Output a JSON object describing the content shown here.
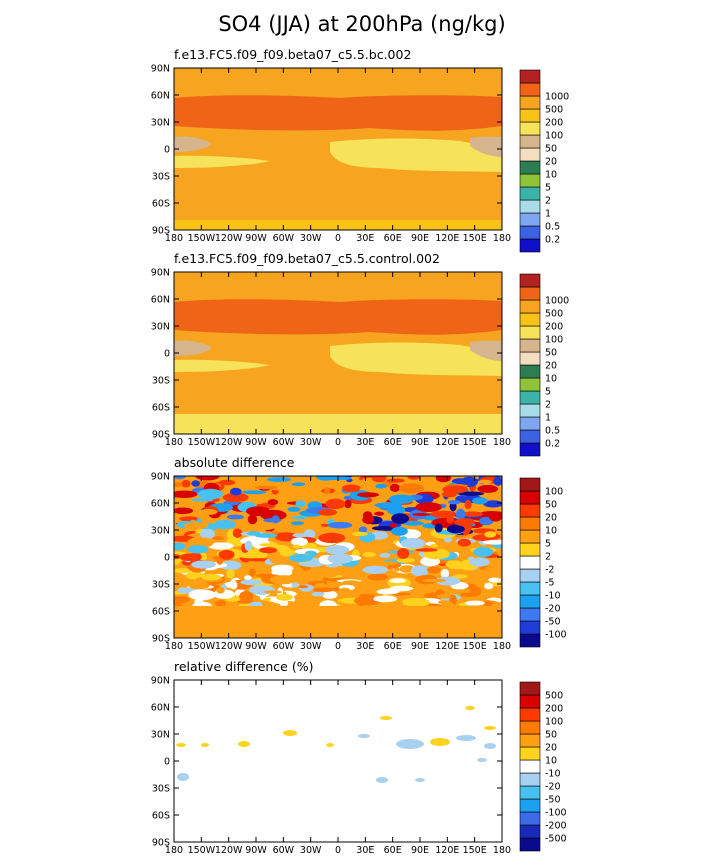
{
  "figure": {
    "title": "SO4 (JJA) at 200hPa (ng/kg)"
  },
  "axes": {
    "lat_ticks": [
      "90N",
      "60N",
      "30N",
      "0",
      "30S",
      "60S",
      "90S"
    ],
    "lon_ticks": [
      "180",
      "150W",
      "120W",
      "90W",
      "60W",
      "30W",
      "0",
      "30E",
      "60E",
      "90E",
      "120E",
      "150E",
      "180"
    ]
  },
  "colors": {
    "conc_scale": [
      "#1010c8",
      "#3d62e0",
      "#7fa6f0",
      "#a8dce8",
      "#3cb3a8",
      "#8fc43a",
      "#2e7d52",
      "#f3dfc0",
      "#d7b58c",
      "#f7e35a",
      "#f7c318",
      "#f7a420",
      "#f06418",
      "#b22222"
    ],
    "diff_scale": [
      "#0a0a8c",
      "#1f3cd8",
      "#3d7af0",
      "#1ea0f0",
      "#48c0f0",
      "#a8d0f0",
      "#ffffff",
      "#ffd21e",
      "#ffa014",
      "#ff7a00",
      "#ff3a00",
      "#d80000",
      "#a01818"
    ],
    "rel_scale": [
      "#0a0a8c",
      "#1a2ab8",
      "#3d6ae8",
      "#1ea0f0",
      "#48c0f0",
      "#a8d0f0",
      "#ffffff",
      "#ffd21e",
      "#ffa014",
      "#ff7a00",
      "#ff3a00",
      "#d80000",
      "#a01818"
    ]
  },
  "chart_data": [
    {
      "type": "heatmap",
      "panel": "bc",
      "title": "f.e13.FC5.f09_f09.beta07_c5.5.bc.002",
      "xlabel": "",
      "ylabel": "",
      "xlim": [
        -180,
        180
      ],
      "ylim": [
        -90,
        90
      ],
      "colorbar_levels": [
        "0.2",
        "0.5",
        "1",
        "2",
        "5",
        "10",
        "20",
        "50",
        "100",
        "200",
        "500",
        "1000"
      ],
      "bands": [
        {
          "lat_from": 90,
          "lat_to": 63,
          "value": "200-500"
        },
        {
          "lat_from": 63,
          "lat_to": 35,
          "value": "500-1000"
        },
        {
          "lat_from": 35,
          "lat_to": 20,
          "value": "200-500"
        },
        {
          "lat_from": 20,
          "lat_to": -40,
          "value": "100-200 / 200-500"
        },
        {
          "lat_from": -40,
          "lat_to": -75,
          "value": "200-500"
        },
        {
          "lat_from": -75,
          "lat_to": -90,
          "value": "100-200"
        }
      ]
    },
    {
      "type": "heatmap",
      "panel": "control",
      "title": "f.e13.FC5.f09_f09.beta07_c5.5.control.002",
      "xlabel": "",
      "ylabel": "",
      "xlim": [
        -180,
        180
      ],
      "ylim": [
        -90,
        90
      ],
      "colorbar_levels": [
        "0.2",
        "0.5",
        "1",
        "2",
        "5",
        "10",
        "20",
        "50",
        "100",
        "200",
        "500",
        "1000"
      ],
      "bands": [
        {
          "lat_from": 90,
          "lat_to": 63,
          "value": "200-500"
        },
        {
          "lat_from": 63,
          "lat_to": 35,
          "value": "500-1000"
        },
        {
          "lat_from": 35,
          "lat_to": 20,
          "value": "200-500"
        },
        {
          "lat_from": 20,
          "lat_to": -40,
          "value": "100-200 / 200-500"
        },
        {
          "lat_from": -40,
          "lat_to": -75,
          "value": "200-500"
        },
        {
          "lat_from": -75,
          "lat_to": -90,
          "value": "100-200"
        }
      ]
    },
    {
      "type": "heatmap",
      "panel": "absolute-difference",
      "title": "absolute difference",
      "xlabel": "",
      "ylabel": "",
      "xlim": [
        -180,
        180
      ],
      "ylim": [
        -90,
        90
      ],
      "colorbar_levels": [
        "-100",
        "-50",
        "-20",
        "-10",
        "-5",
        "-2",
        "2",
        "5",
        "10",
        "20",
        "50",
        "100"
      ]
    },
    {
      "type": "heatmap",
      "panel": "relative-difference",
      "title": "relative difference (%)",
      "xlabel": "",
      "ylabel": "",
      "xlim": [
        -180,
        180
      ],
      "ylim": [
        -90,
        90
      ],
      "colorbar_levels": [
        "-500",
        "-200",
        "-100",
        "-50",
        "-20",
        "-10",
        "10",
        "20",
        "50",
        "100",
        "200",
        "500"
      ]
    }
  ]
}
